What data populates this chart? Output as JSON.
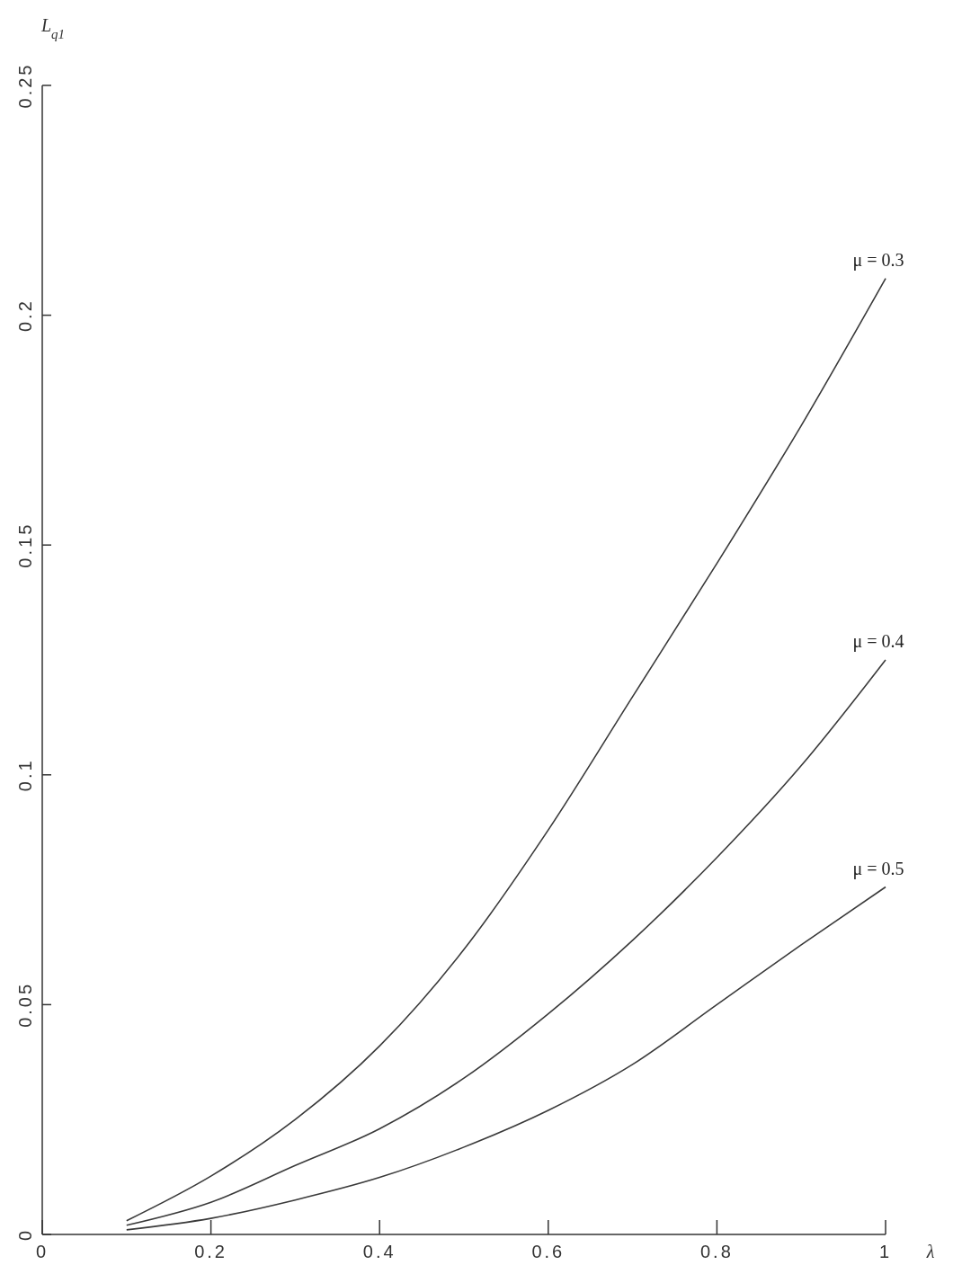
{
  "chart_data": {
    "type": "line",
    "xlabel": "λ",
    "ylabel": "L$_{q1}$",
    "xlim": [
      0,
      1
    ],
    "ylim": [
      0,
      0.25
    ],
    "xticks": [
      0,
      0.2,
      0.4,
      0.6,
      0.8,
      1
    ],
    "yticks": [
      0,
      0.05,
      0.1,
      0.15,
      0.2,
      0.25
    ],
    "grid": false,
    "marker": "none",
    "line_style": "solid",
    "x": [
      0.1,
      0.2,
      0.3,
      0.4,
      0.5,
      0.6,
      0.7,
      0.8,
      0.9,
      1
    ],
    "series": [
      {
        "name": "μ = 0.3",
        "color": "#3a3a3a",
        "values": [
          0.003,
          0.0127,
          0.025,
          0.041,
          0.062,
          0.088,
          0.117,
          0.146,
          0.176,
          0.208
        ]
      },
      {
        "name": "μ = 0.4",
        "color": "#3a3a3a",
        "values": [
          0.002,
          0.007,
          0.015,
          0.023,
          0.034,
          0.048,
          0.064,
          0.082,
          0.102,
          0.125
        ]
      },
      {
        "name": "μ = 0.5",
        "color": "#3a3a3a",
        "values": [
          0.001,
          0.0035,
          0.0075,
          0.0124,
          0.019,
          0.027,
          0.037,
          0.05,
          0.063,
          0.0756
        ]
      }
    ]
  }
}
